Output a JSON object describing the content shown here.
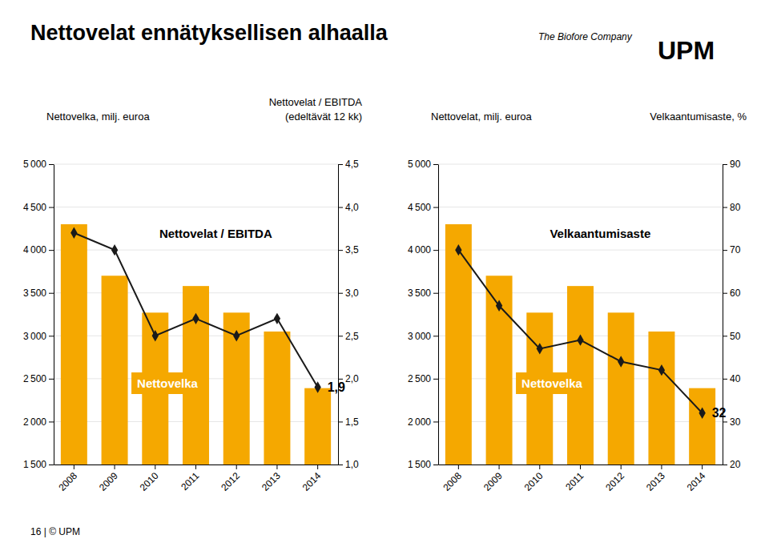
{
  "chart_data": [
    {
      "type": "bar",
      "title": "Nettovelat ennätyksellisen alhaalla",
      "categories": [
        2008,
        2009,
        2010,
        2011,
        2012,
        2013,
        2014
      ],
      "series": [
        {
          "name": "Nettovelka",
          "type": "bar",
          "color": "#f5a800",
          "values": [
            4300,
            3700,
            3270,
            3580,
            3270,
            3050,
            2390
          ]
        },
        {
          "name": "Nettovelat / EBITDA",
          "type": "line",
          "axis": "y2",
          "color": "#1a1a1a",
          "marker": "diamond",
          "line_style": "solid",
          "values": [
            3.7,
            3.5,
            2.5,
            2.7,
            2.5,
            2.7,
            1.9
          ],
          "value_labels": [
            null,
            null,
            null,
            null,
            null,
            null,
            "1,9"
          ]
        }
      ],
      "ylabel": "Nettovelka, milj. euroa",
      "y2label": [
        "Nettovelat / EBITDA",
        "(edeltävät 12 kk)"
      ],
      "ylim": [
        1500,
        5000
      ],
      "yticks": [
        {
          "value": 1500,
          "label": "1 500"
        },
        {
          "value": 2000,
          "label": "2 000"
        },
        {
          "value": 2500,
          "label": "2 500"
        },
        {
          "value": 3000,
          "label": "3 000"
        },
        {
          "value": 3500,
          "label": "3 500"
        },
        {
          "value": 4000,
          "label": "4 000"
        },
        {
          "value": 4500,
          "label": "4 500"
        },
        {
          "value": 5000,
          "label": "5 000"
        }
      ],
      "y2lim": [
        1.0,
        4.5
      ],
      "y2ticks": [
        {
          "value": 1.0,
          "label": "1,0"
        },
        {
          "value": 1.5,
          "label": "1,5"
        },
        {
          "value": 2.0,
          "label": "2,0"
        },
        {
          "value": 2.5,
          "label": "2,5"
        },
        {
          "value": 3.0,
          "label": "3,0"
        },
        {
          "value": 3.5,
          "label": "3,5"
        },
        {
          "value": 4.0,
          "label": "4,0"
        },
        {
          "value": 4.5,
          "label": "4,5"
        }
      ],
      "grid": true,
      "annotations": [
        "16 | © UPM",
        "The Biofore Company",
        "UPM"
      ]
    },
    {
      "type": "bar",
      "categories": [
        2008,
        2009,
        2010,
        2011,
        2012,
        2013,
        2014
      ],
      "series": [
        {
          "name": "Nettovelka",
          "type": "bar",
          "color": "#f5a800",
          "values": [
            4300,
            3700,
            3270,
            3580,
            3270,
            3050,
            2390
          ]
        },
        {
          "name": "Velkaantumisaste",
          "type": "line",
          "axis": "y2",
          "color": "#1a1a1a",
          "marker": "diamond",
          "line_style": "solid",
          "values": [
            70,
            57,
            47,
            49,
            44,
            42,
            32
          ],
          "value_labels": [
            null,
            null,
            null,
            null,
            null,
            null,
            "32"
          ]
        }
      ],
      "ylabel": "Nettovelat, milj. euroa",
      "y2label": [
        "Velkaantumisaste, %"
      ],
      "ylim": [
        1500,
        5000
      ],
      "yticks": [
        {
          "value": 1500,
          "label": "1 500"
        },
        {
          "value": 2000,
          "label": "2 000"
        },
        {
          "value": 2500,
          "label": "2 500"
        },
        {
          "value": 3000,
          "label": "3 000"
        },
        {
          "value": 3500,
          "label": "3 500"
        },
        {
          "value": 4000,
          "label": "4 000"
        },
        {
          "value": 4500,
          "label": "4 500"
        },
        {
          "value": 5000,
          "label": "5 000"
        }
      ],
      "y2lim": [
        20,
        90
      ],
      "y2ticks": [
        20,
        30,
        40,
        50,
        60,
        70,
        80,
        90
      ],
      "grid": true
    }
  ]
}
